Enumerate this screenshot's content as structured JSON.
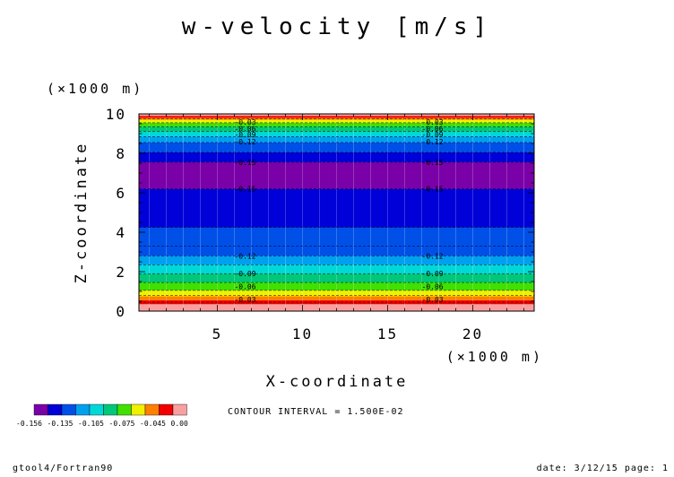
{
  "title": "w-velocity [m/s]",
  "y_unit": "(×1000 m)",
  "x_unit": "(×1000 m)",
  "contour_interval": "CONTOUR INTERVAL = 1.500E-02",
  "footer_left": "gtool4/Fortran90",
  "footer_right": "date: 3/12/15 page: 1",
  "colors": {
    "levels": [
      "#7a00a8",
      "#0000d8",
      "#0050e8",
      "#00a0f0",
      "#00d8d8",
      "#00c878",
      "#40e000",
      "#f0f000",
      "#ff8000",
      "#f00000",
      "#f8a0a0"
    ],
    "frame": "#000000",
    "grid": "#ffffff"
  },
  "legend": {
    "ticks": [
      "-0.156",
      "-0.135",
      "-0.105",
      "-0.075",
      "-0.045",
      "0.00"
    ]
  },
  "chart_data": {
    "type": "heatmap",
    "title": "w-velocity [m/s]",
    "xlabel": "X-coordinate",
    "ylabel": "Z-coordinate",
    "xlim": [
      0.4,
      23.6
    ],
    "ylim": [
      0,
      10
    ],
    "x_ticks": [
      5,
      10,
      15,
      20
    ],
    "y_ticks": [
      0,
      2,
      4,
      6,
      8,
      10
    ],
    "bands": [
      {
        "z0": 0.0,
        "z1": 0.35,
        "level": 10
      },
      {
        "z0": 0.35,
        "z1": 0.55,
        "level": 9
      },
      {
        "z0": 0.55,
        "z1": 0.75,
        "level": 8
      },
      {
        "z0": 0.75,
        "z1": 1.05,
        "level": 7
      },
      {
        "z0": 1.05,
        "z1": 1.45,
        "level": 6
      },
      {
        "z0": 1.45,
        "z1": 1.9,
        "level": 5
      },
      {
        "z0": 1.9,
        "z1": 2.35,
        "level": 4
      },
      {
        "z0": 2.35,
        "z1": 2.8,
        "level": 3
      },
      {
        "z0": 2.8,
        "z1": 4.25,
        "level": 2
      },
      {
        "z0": 4.25,
        "z1": 6.2,
        "level": 1
      },
      {
        "z0": 6.2,
        "z1": 7.55,
        "level": 0
      },
      {
        "z0": 7.55,
        "z1": 8.05,
        "level": 1
      },
      {
        "z0": 8.05,
        "z1": 8.55,
        "level": 2
      },
      {
        "z0": 8.55,
        "z1": 8.85,
        "level": 3
      },
      {
        "z0": 8.85,
        "z1": 9.1,
        "level": 4
      },
      {
        "z0": 9.1,
        "z1": 9.35,
        "level": 5
      },
      {
        "z0": 9.35,
        "z1": 9.55,
        "level": 6
      },
      {
        "z0": 9.55,
        "z1": 9.7,
        "level": 7
      },
      {
        "z0": 9.7,
        "z1": 9.8,
        "level": 8
      },
      {
        "z0": 9.8,
        "z1": 9.9,
        "level": 9
      },
      {
        "z0": 9.9,
        "z1": 10.0,
        "level": 10
      }
    ],
    "contour_lines": [
      0.45,
      0.8,
      1.05,
      1.45,
      1.9,
      2.35,
      2.8,
      3.3,
      4.25,
      6.2,
      7.55,
      8.05,
      8.55,
      8.85,
      9.1,
      9.35,
      9.55,
      9.75
    ],
    "contour_labels": [
      {
        "text": "-0.03",
        "z": 0.6
      },
      {
        "text": "-0.06",
        "z": 1.25
      },
      {
        "text": "-0.09",
        "z": 1.9
      },
      {
        "text": "-0.12",
        "z": 2.8
      },
      {
        "text": "-0.15",
        "z": 6.2
      },
      {
        "text": "-0.15",
        "z": 7.55
      },
      {
        "text": "-0.12",
        "z": 8.6
      },
      {
        "text": "-0.09",
        "z": 8.95
      },
      {
        "text": "-0.06",
        "z": 9.25
      },
      {
        "text": "-0.03",
        "z": 9.6
      }
    ],
    "label_x": [
      6.0,
      17.0
    ]
  }
}
